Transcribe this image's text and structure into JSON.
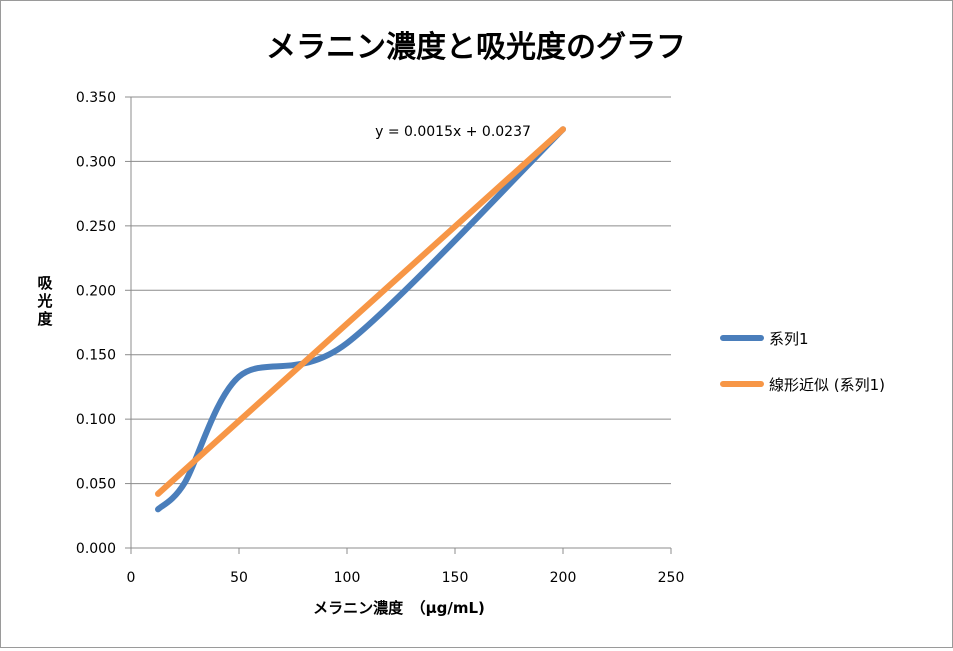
{
  "chart_data": {
    "type": "line",
    "title": "メラニン濃度と吸光度のグラフ",
    "xlabel": "メラニン濃度　（μg/mL)",
    "ylabel": "吸光度",
    "xlim": [
      0,
      250
    ],
    "ylim": [
      0,
      0.35
    ],
    "x_ticks": [
      "0",
      "50",
      "100",
      "150",
      "200",
      "250"
    ],
    "y_ticks": [
      "0.000",
      "0.050",
      "0.100",
      "0.150",
      "0.200",
      "0.250",
      "0.300",
      "0.350"
    ],
    "grid": "horizontal",
    "legend_position": "right",
    "series": [
      {
        "name": "系列1",
        "color": "#4a7ebb",
        "x": [
          12.5,
          25,
          50,
          100,
          200
        ],
        "y": [
          0.03,
          0.051,
          0.133,
          0.159,
          0.325
        ],
        "smooth": true
      },
      {
        "name": "線形近似 (系列1)",
        "color": "#f79646",
        "trendline": "linear",
        "x": [
          12.5,
          200
        ],
        "y": [
          0.042,
          0.325
        ]
      }
    ],
    "annotations": [
      {
        "text": "y = 0.0015x + 0.0237"
      }
    ]
  }
}
